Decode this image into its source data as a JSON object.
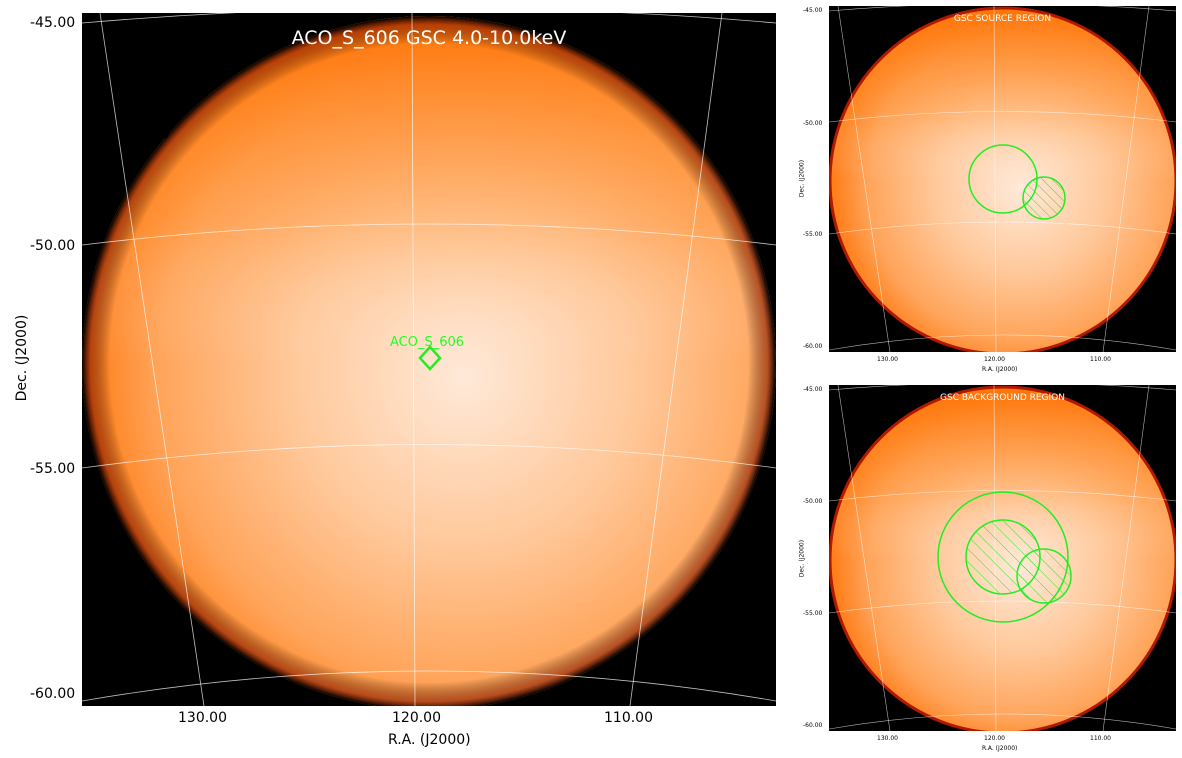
{
  "main": {
    "title": "ACO_S_606 GSC 4.0-10.0keV",
    "source_label": "ACO_S_606",
    "xlabel": "R.A. (J2000)",
    "ylabel": "Dec. (J2000)",
    "xticks": [
      "130.00",
      "120.00",
      "110.00"
    ],
    "yticks": [
      "-45.00",
      "-50.00",
      "-55.00",
      "-60.00"
    ]
  },
  "source_region": {
    "title": "GSC SOURCE REGION",
    "xlabel": "R.A. (J2000)",
    "ylabel": "Dec. (J2000)",
    "xticks": [
      "130.00",
      "120.00",
      "110.00"
    ],
    "yticks": [
      "-45.00",
      "-50.00",
      "-55.00",
      "-60.00"
    ]
  },
  "background_region": {
    "title": "GSC BACKGROUND REGION",
    "xlabel": "R.A. (J2000)",
    "ylabel": "Dec. (J2000)",
    "xticks": [
      "130.00",
      "120.00",
      "110.00"
    ],
    "yticks": [
      "-45.00",
      "-50.00",
      "-55.00",
      "-60.00"
    ]
  },
  "colors": {
    "region": "#22ee22",
    "grid": "#ffffff",
    "disk_center": "#ffe9d6",
    "disk_edge": "#ff7a10"
  }
}
